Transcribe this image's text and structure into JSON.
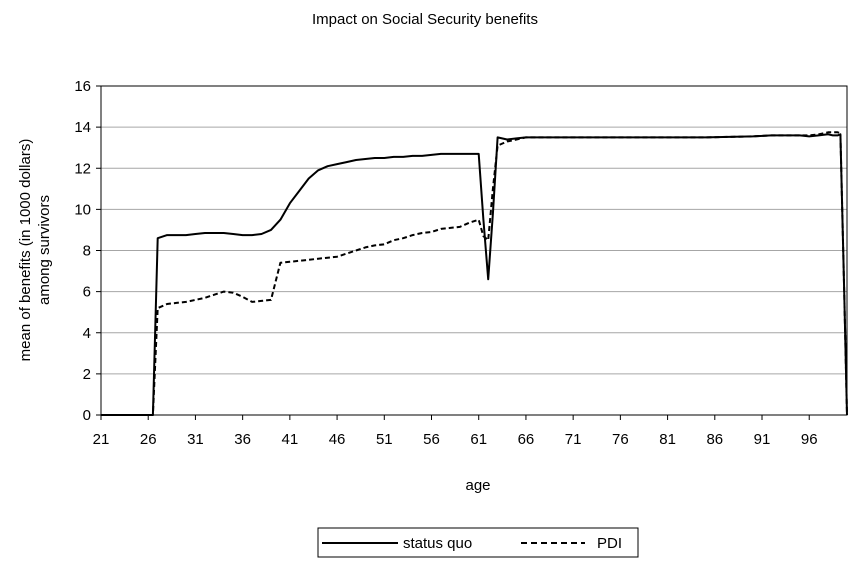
{
  "chart_data": {
    "type": "line",
    "title": "Impact on Social Security benefits",
    "xlabel": "age",
    "ylabel_lines": [
      "mean of benefits (in 1000 dollars)",
      "among survivors"
    ],
    "xlim": [
      21,
      100
    ],
    "ylim": [
      0,
      16
    ],
    "x_ticks": [
      "21",
      "26",
      "31",
      "36",
      "41",
      "46",
      "51",
      "56",
      "61",
      "66",
      "71",
      "76",
      "81",
      "86",
      "91",
      "96"
    ],
    "y_ticks": [
      "0",
      "2",
      "4",
      "6",
      "8",
      "10",
      "12",
      "14",
      "16"
    ],
    "grid": "horizontal",
    "legend_position": "bottom",
    "series": [
      {
        "name": "status quo",
        "style": "solid",
        "color": "#000000",
        "x": [
          21,
          22,
          23,
          24,
          25,
          26,
          26.5,
          27,
          28,
          29,
          30,
          31,
          32,
          33,
          34,
          35,
          36,
          37,
          38,
          39,
          40,
          41,
          42,
          43,
          44,
          45,
          46,
          47,
          48,
          49,
          50,
          51,
          52,
          53,
          54,
          55,
          56,
          57,
          58,
          59,
          60,
          61,
          61.5,
          62,
          62.5,
          63,
          64,
          65,
          66,
          68,
          70,
          75,
          80,
          85,
          90,
          92,
          94,
          95,
          96,
          97,
          98,
          98.5,
          99,
          99.3,
          99.7,
          100
        ],
        "y": [
          0,
          0,
          0,
          0,
          0,
          0,
          0,
          8.6,
          8.75,
          8.75,
          8.75,
          8.8,
          8.85,
          8.85,
          8.85,
          8.8,
          8.75,
          8.75,
          8.8,
          9.0,
          9.5,
          10.3,
          10.9,
          11.5,
          11.9,
          12.1,
          12.2,
          12.3,
          12.4,
          12.45,
          12.5,
          12.5,
          12.55,
          12.55,
          12.6,
          12.6,
          12.65,
          12.7,
          12.7,
          12.7,
          12.7,
          12.7,
          9.5,
          6.6,
          9.8,
          13.5,
          13.4,
          13.45,
          13.5,
          13.5,
          13.5,
          13.5,
          13.5,
          13.5,
          13.55,
          13.6,
          13.6,
          13.6,
          13.55,
          13.6,
          13.65,
          13.6,
          13.6,
          13.65,
          6.0,
          0
        ]
      },
      {
        "name": "PDI",
        "style": "dashed",
        "color": "#000000",
        "x": [
          21,
          22,
          23,
          24,
          25,
          26,
          26.5,
          27,
          28,
          29,
          30,
          31,
          32,
          33,
          34,
          35,
          36,
          37,
          38,
          39,
          39.5,
          40,
          41,
          42,
          43,
          44,
          45,
          46,
          47,
          48,
          49,
          50,
          51,
          52,
          53,
          54,
          55,
          56,
          57,
          58,
          59,
          60,
          61,
          61.5,
          62,
          62.5,
          63,
          64,
          65,
          66,
          68,
          70,
          75,
          80,
          85,
          90,
          92,
          94,
          95,
          96,
          97,
          98,
          98.5,
          99,
          99.3,
          99.7,
          100
        ],
        "y": [
          0,
          0,
          0,
          0,
          0,
          0,
          0,
          5.2,
          5.4,
          5.45,
          5.5,
          5.6,
          5.7,
          5.85,
          6.0,
          5.95,
          5.75,
          5.5,
          5.55,
          5.6,
          6.5,
          7.4,
          7.45,
          7.5,
          7.55,
          7.6,
          7.65,
          7.7,
          7.85,
          8.0,
          8.15,
          8.25,
          8.3,
          8.5,
          8.6,
          8.75,
          8.85,
          8.9,
          9.05,
          9.1,
          9.15,
          9.35,
          9.5,
          8.7,
          8.5,
          11.0,
          13.1,
          13.3,
          13.4,
          13.5,
          13.5,
          13.5,
          13.5,
          13.5,
          13.5,
          13.55,
          13.6,
          13.6,
          13.6,
          13.6,
          13.65,
          13.75,
          13.75,
          13.75,
          13.7,
          6.0,
          0
        ]
      }
    ]
  }
}
